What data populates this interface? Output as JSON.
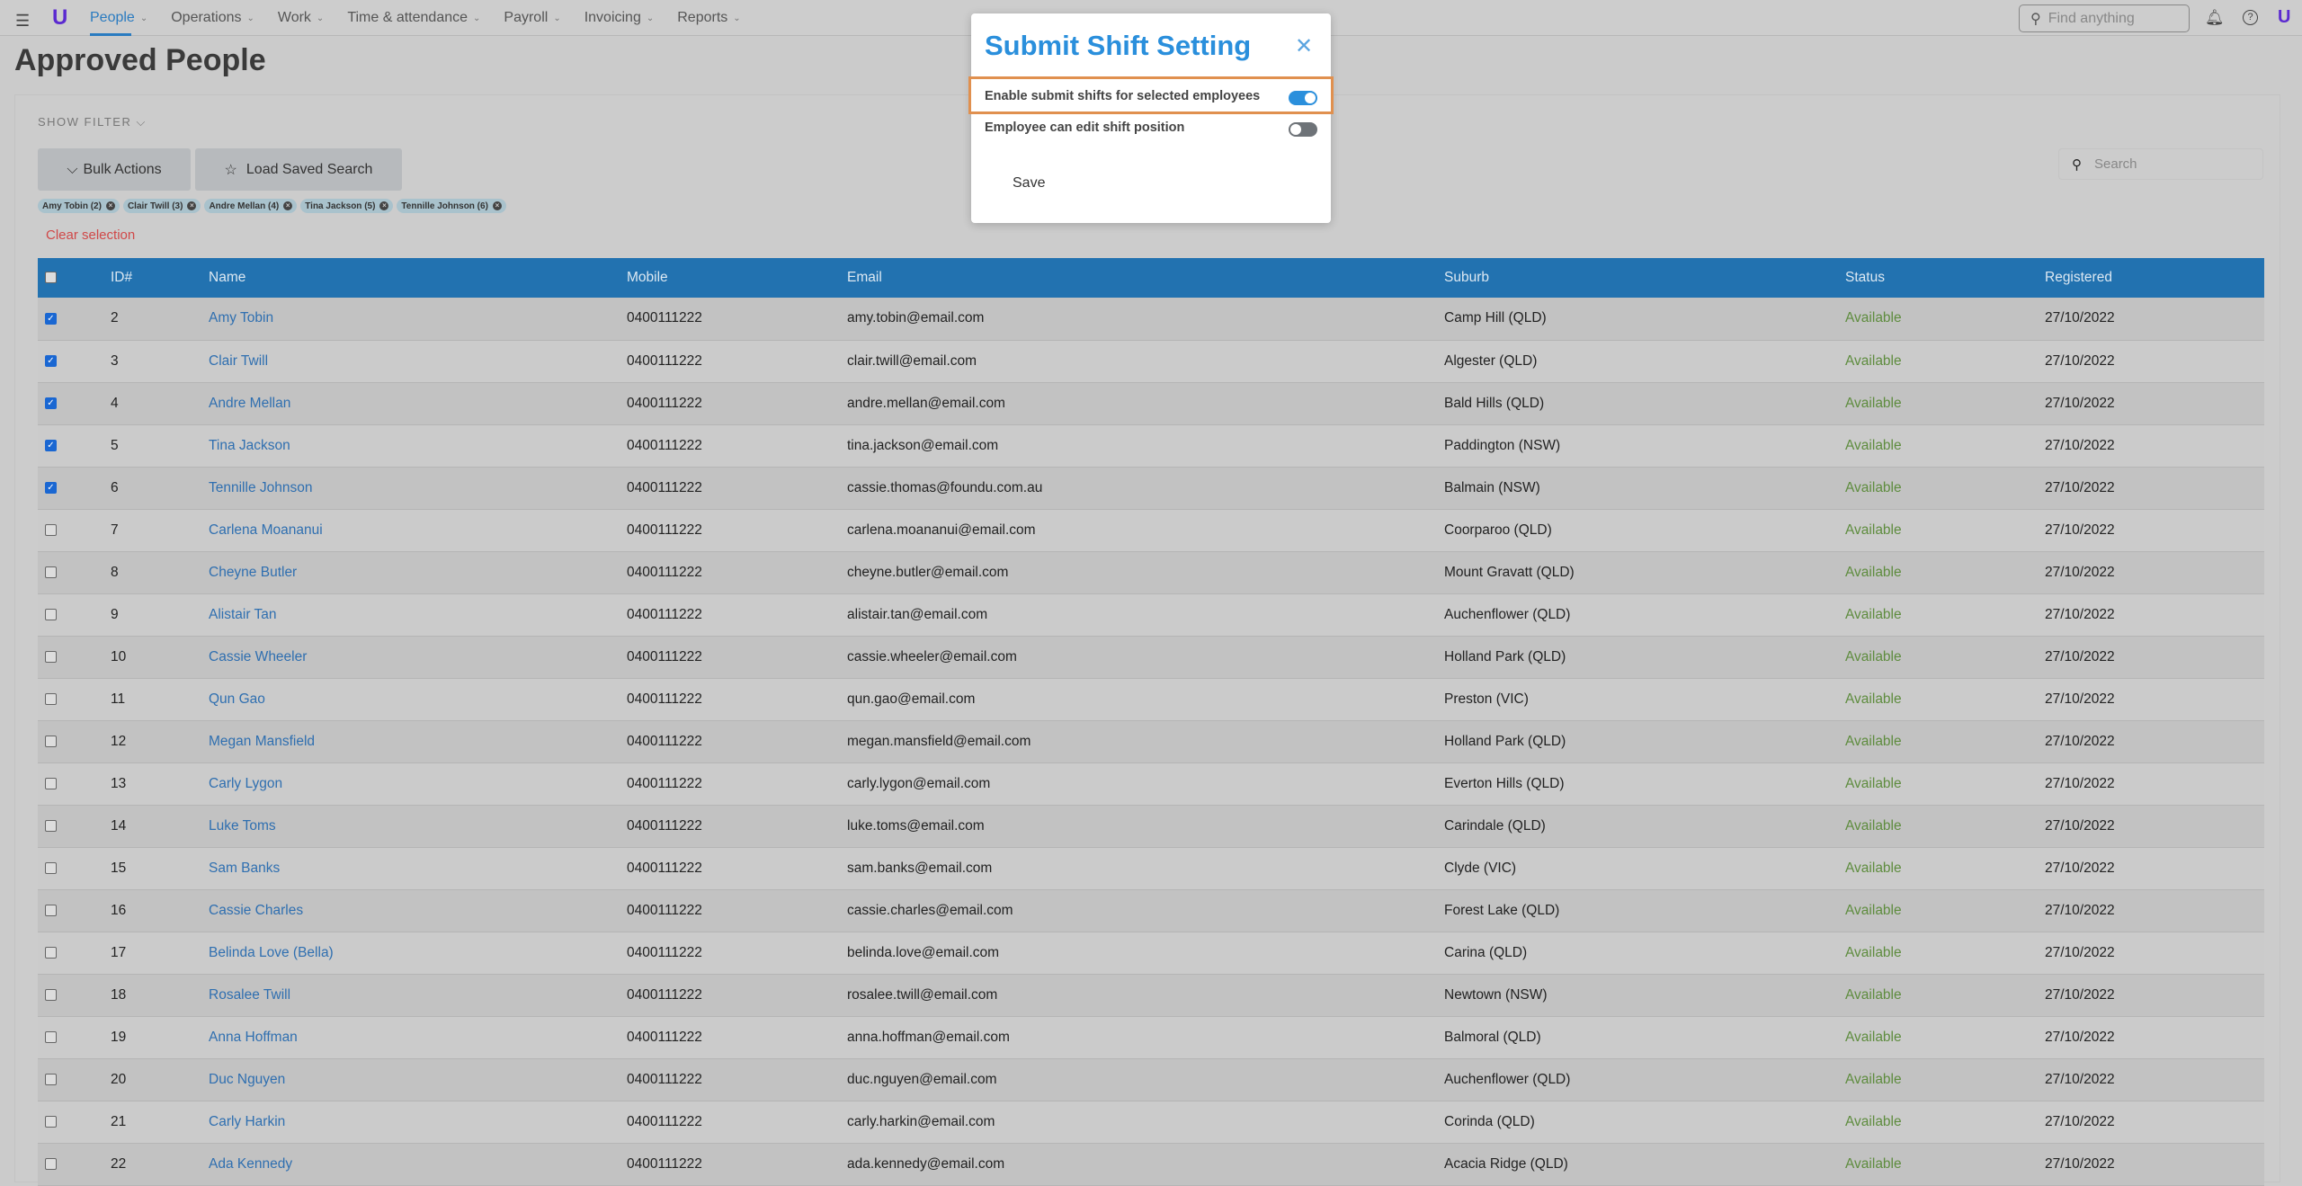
{
  "nav": {
    "items": [
      {
        "label": "People",
        "active": true
      },
      {
        "label": "Operations"
      },
      {
        "label": "Work"
      },
      {
        "label": "Time & attendance"
      },
      {
        "label": "Payroll"
      },
      {
        "label": "Invoicing"
      },
      {
        "label": "Reports"
      }
    ],
    "search_placeholder": "Find anything"
  },
  "page": {
    "title": "Approved People",
    "show_filter": "SHOW FILTER",
    "bulk_actions": "Bulk Actions",
    "load_saved_search": "Load Saved Search",
    "clear_selection": "Clear selection",
    "search_placeholder": "Search"
  },
  "chips": [
    "Amy Tobin (2)",
    "Clair Twill (3)",
    "Andre Mellan (4)",
    "Tina Jackson (5)",
    "Tennille Johnson (6)"
  ],
  "table": {
    "columns": [
      "ID#",
      "Name",
      "Mobile",
      "Email",
      "Suburb",
      "Status",
      "Registered"
    ],
    "rows": [
      {
        "checked": true,
        "id": "2",
        "name": "Amy Tobin",
        "mobile": "0400111222",
        "email": "amy.tobin@email.com",
        "suburb": "Camp Hill (QLD)",
        "status": "Available",
        "registered": "27/10/2022"
      },
      {
        "checked": true,
        "id": "3",
        "name": "Clair Twill",
        "mobile": "0400111222",
        "email": "clair.twill@email.com",
        "suburb": "Algester (QLD)",
        "status": "Available",
        "registered": "27/10/2022"
      },
      {
        "checked": true,
        "id": "4",
        "name": "Andre Mellan",
        "mobile": "0400111222",
        "email": "andre.mellan@email.com",
        "suburb": "Bald Hills (QLD)",
        "status": "Available",
        "registered": "27/10/2022"
      },
      {
        "checked": true,
        "id": "5",
        "name": "Tina Jackson",
        "mobile": "0400111222",
        "email": "tina.jackson@email.com",
        "suburb": "Paddington (NSW)",
        "status": "Available",
        "registered": "27/10/2022"
      },
      {
        "checked": true,
        "id": "6",
        "name": "Tennille Johnson",
        "mobile": "0400111222",
        "email": "cassie.thomas@foundu.com.au",
        "suburb": "Balmain (NSW)",
        "status": "Available",
        "registered": "27/10/2022"
      },
      {
        "checked": false,
        "id": "7",
        "name": "Carlena Moananui",
        "mobile": "0400111222",
        "email": "carlena.moananui@email.com",
        "suburb": "Coorparoo (QLD)",
        "status": "Available",
        "registered": "27/10/2022"
      },
      {
        "checked": false,
        "id": "8",
        "name": "Cheyne Butler",
        "mobile": "0400111222",
        "email": "cheyne.butler@email.com",
        "suburb": "Mount Gravatt (QLD)",
        "status": "Available",
        "registered": "27/10/2022"
      },
      {
        "checked": false,
        "id": "9",
        "name": "Alistair Tan",
        "mobile": "0400111222",
        "email": "alistair.tan@email.com",
        "suburb": "Auchenflower (QLD)",
        "status": "Available",
        "registered": "27/10/2022"
      },
      {
        "checked": false,
        "id": "10",
        "name": "Cassie Wheeler",
        "mobile": "0400111222",
        "email": "cassie.wheeler@email.com",
        "suburb": "Holland Park (QLD)",
        "status": "Available",
        "registered": "27/10/2022"
      },
      {
        "checked": false,
        "id": "11",
        "name": "Qun Gao",
        "mobile": "0400111222",
        "email": "qun.gao@email.com",
        "suburb": "Preston (VIC)",
        "status": "Available",
        "registered": "27/10/2022"
      },
      {
        "checked": false,
        "id": "12",
        "name": "Megan Mansfield",
        "mobile": "0400111222",
        "email": "megan.mansfield@email.com",
        "suburb": "Holland Park (QLD)",
        "status": "Available",
        "registered": "27/10/2022"
      },
      {
        "checked": false,
        "id": "13",
        "name": "Carly Lygon",
        "mobile": "0400111222",
        "email": "carly.lygon@email.com",
        "suburb": "Everton Hills (QLD)",
        "status": "Available",
        "registered": "27/10/2022"
      },
      {
        "checked": false,
        "id": "14",
        "name": "Luke Toms",
        "mobile": "0400111222",
        "email": "luke.toms@email.com",
        "suburb": "Carindale (QLD)",
        "status": "Available",
        "registered": "27/10/2022"
      },
      {
        "checked": false,
        "id": "15",
        "name": "Sam Banks",
        "mobile": "0400111222",
        "email": "sam.banks@email.com",
        "suburb": "Clyde (VIC)",
        "status": "Available",
        "registered": "27/10/2022"
      },
      {
        "checked": false,
        "id": "16",
        "name": "Cassie Charles",
        "mobile": "0400111222",
        "email": "cassie.charles@email.com",
        "suburb": "Forest Lake (QLD)",
        "status": "Available",
        "registered": "27/10/2022"
      },
      {
        "checked": false,
        "id": "17",
        "name": "Belinda Love (Bella)",
        "mobile": "0400111222",
        "email": "belinda.love@email.com",
        "suburb": "Carina (QLD)",
        "status": "Available",
        "registered": "27/10/2022"
      },
      {
        "checked": false,
        "id": "18",
        "name": "Rosalee Twill",
        "mobile": "0400111222",
        "email": "rosalee.twill@email.com",
        "suburb": "Newtown (NSW)",
        "status": "Available",
        "registered": "27/10/2022"
      },
      {
        "checked": false,
        "id": "19",
        "name": "Anna Hoffman",
        "mobile": "0400111222",
        "email": "anna.hoffman@email.com",
        "suburb": "Balmoral (QLD)",
        "status": "Available",
        "registered": "27/10/2022"
      },
      {
        "checked": false,
        "id": "20",
        "name": "Duc Nguyen",
        "mobile": "0400111222",
        "email": "duc.nguyen@email.com",
        "suburb": "Auchenflower (QLD)",
        "status": "Available",
        "registered": "27/10/2022"
      },
      {
        "checked": false,
        "id": "21",
        "name": "Carly Harkin",
        "mobile": "0400111222",
        "email": "carly.harkin@email.com",
        "suburb": "Corinda (QLD)",
        "status": "Available",
        "registered": "27/10/2022"
      },
      {
        "checked": false,
        "id": "22",
        "name": "Ada Kennedy",
        "mobile": "0400111222",
        "email": "ada.kennedy@email.com",
        "suburb": "Acacia Ridge (QLD)",
        "status": "Available",
        "registered": "27/10/2022"
      }
    ]
  },
  "modal": {
    "title": "Submit Shift Setting",
    "options": [
      {
        "label": "Enable submit shifts for selected employees",
        "on": true
      },
      {
        "label": "Employee can edit shift position",
        "on": false
      }
    ],
    "save": "Save"
  },
  "colors": {
    "accent": "#2a8fdc",
    "header": "#2272b0",
    "highlight": "#e0904f",
    "status": "#5e8c3e",
    "danger": "#d04848"
  }
}
